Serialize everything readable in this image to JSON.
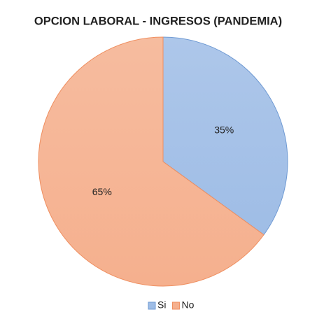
{
  "chart_data": {
    "type": "pie",
    "title": "OPCION LABORAL - INGRESOS (PANDEMIA)",
    "categories": [
      "Si",
      "No"
    ],
    "values": [
      35,
      65
    ],
    "value_labels": [
      "35%",
      "65%"
    ],
    "colors": [
      "#9fbde6",
      "#f5b08e"
    ],
    "edge_colors": [
      "#6f9ad3",
      "#ef8e5f"
    ],
    "legend": "bottom"
  }
}
